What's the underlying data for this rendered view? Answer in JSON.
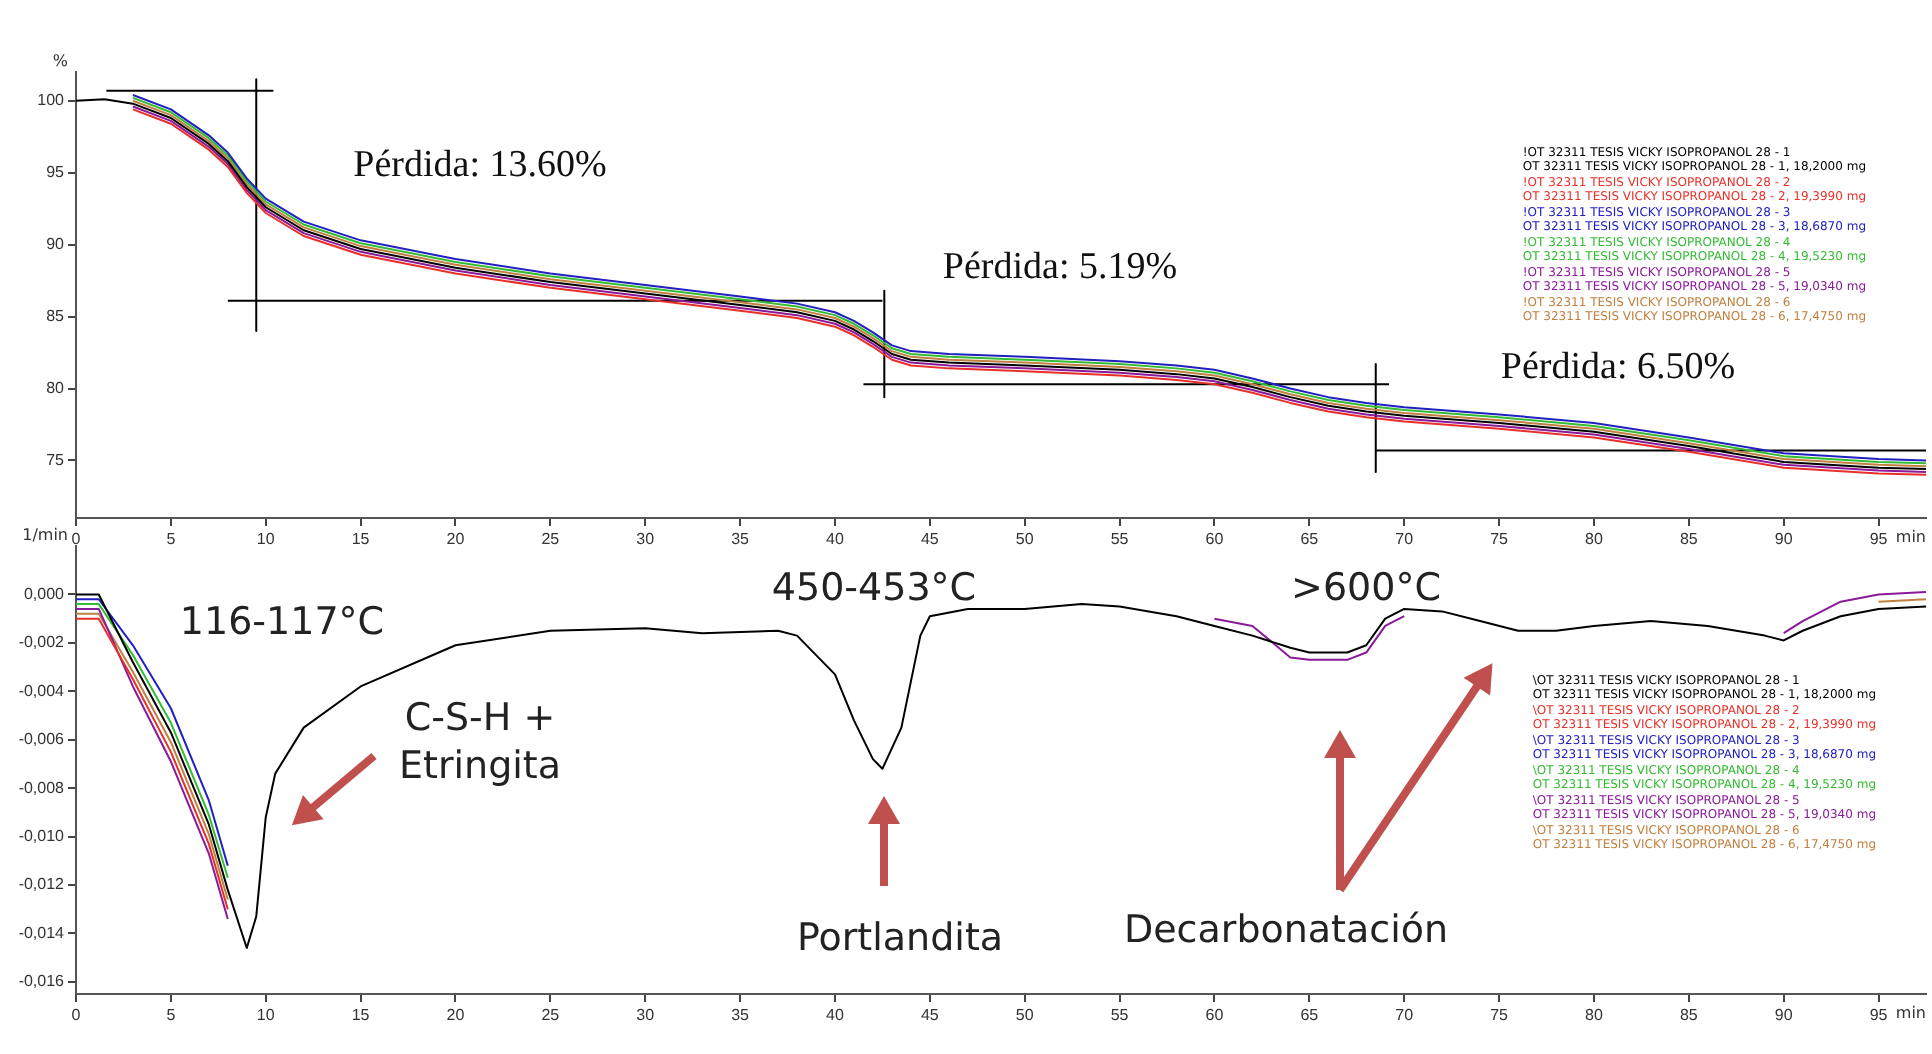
{
  "chart_data": [
    {
      "type": "line",
      "ylabel": "%",
      "xlabel": "min",
      "legend": "top right",
      "marker": "none",
      "xlim": [
        0,
        97.5
      ],
      "xticks": [
        0,
        5,
        10,
        15,
        20,
        25,
        30,
        35,
        40,
        45,
        50,
        55,
        60,
        65,
        70,
        75,
        80,
        85,
        90,
        95
      ],
      "ylim": [
        71,
        102
      ],
      "yticks": [
        75,
        80,
        85,
        90,
        95,
        100
      ],
      "x": [
        0,
        1.5,
        3,
        5,
        7,
        8,
        9,
        10,
        12,
        15,
        20,
        25,
        30,
        35,
        38,
        40,
        41,
        42,
        43,
        44,
        46,
        50,
        55,
        58,
        60,
        62,
        64,
        66,
        68,
        70,
        75,
        80,
        85,
        90,
        95,
        97.5
      ],
      "series": [
        {
          "name": "!OT 32311 TESIS VICKY ISOPROPANOL 28 - 1\nOT 32311 TESIS VICKY ISOPROPANOL 28 - 1, 18,2000 mg",
          "color": "#000000",
          "values": [
            100,
            100.1,
            99.8,
            98.8,
            97,
            95.8,
            94,
            92.6,
            91,
            89.7,
            88.4,
            87.4,
            86.6,
            85.8,
            85.3,
            84.7,
            84.1,
            83.3,
            82.4,
            82,
            81.8,
            81.6,
            81.3,
            81,
            80.7,
            80.1,
            79.4,
            78.8,
            78.4,
            78.1,
            77.6,
            77,
            76,
            74.9,
            74.5,
            74.4
          ]
        },
        {
          "name": "!OT 32311 TESIS VICKY ISOPROPANOL 28 - 2\nOT 32311 TESIS VICKY ISOPROPANOL 28 - 2, 19,3990 mg",
          "color": "#e8302a",
          "values": [
            null,
            null,
            99.4,
            98.4,
            96.6,
            95.4,
            93.6,
            92.2,
            90.6,
            89.3,
            88,
            87,
            86.2,
            85.4,
            84.9,
            84.3,
            83.7,
            82.9,
            82,
            81.6,
            81.4,
            81.2,
            80.9,
            80.6,
            80.3,
            79.7,
            79,
            78.4,
            78,
            77.7,
            77.2,
            76.6,
            75.6,
            74.5,
            74.1,
            74
          ]
        },
        {
          "name": "!OT 32311 TESIS VICKY ISOPROPANOL 28 - 3\nOT 32311 TESIS VICKY ISOPROPANOL 28 - 3, 18,6870 mg",
          "color": "#2020c0",
          "values": [
            null,
            null,
            100.4,
            99.4,
            97.6,
            96.4,
            94.6,
            93.2,
            91.6,
            90.3,
            89,
            88,
            87.2,
            86.4,
            85.9,
            85.3,
            84.7,
            83.9,
            83,
            82.6,
            82.4,
            82.2,
            81.9,
            81.6,
            81.3,
            80.7,
            80,
            79.4,
            79,
            78.7,
            78.2,
            77.6,
            76.6,
            75.5,
            75.1,
            75
          ]
        },
        {
          "name": "!OT 32311 TESIS VICKY ISOPROPANOL 28 - 4\nOT 32311 TESIS VICKY ISOPROPANOL 28 - 4, 19,5230 mg",
          "color": "#33bb33",
          "values": [
            null,
            null,
            100.2,
            99.2,
            97.4,
            96.2,
            94.4,
            93,
            91.4,
            90.1,
            88.8,
            87.8,
            87,
            86.2,
            85.7,
            85.1,
            84.5,
            83.7,
            82.8,
            82.4,
            82.2,
            82,
            81.7,
            81.4,
            81.1,
            80.5,
            79.8,
            79.2,
            78.8,
            78.5,
            78,
            77.4,
            76.4,
            75.3,
            74.9,
            74.8
          ]
        },
        {
          "name": "!OT 32311 TESIS VICKY ISOPROPANOL 28 - 5\nOT 32311 TESIS VICKY ISOPROPANOL 28 - 5, 19,0340 mg",
          "color": "#8a1a9a",
          "values": [
            null,
            null,
            99.6,
            98.6,
            96.8,
            95.6,
            93.8,
            92.4,
            90.8,
            89.5,
            88.2,
            87.2,
            86.4,
            85.6,
            85.1,
            84.5,
            83.9,
            83.1,
            82.2,
            81.8,
            81.6,
            81.4,
            81.1,
            80.8,
            80.5,
            79.9,
            79.2,
            78.6,
            78.2,
            77.9,
            77.4,
            76.8,
            75.8,
            74.7,
            74.3,
            74.2
          ]
        },
        {
          "name": "!OT 32311 TESIS VICKY ISOPROPANOL 28 - 6\nOT 32311 TESIS VICKY ISOPROPANOL 28 - 6, 17,4750 mg",
          "color": "#c08040",
          "values": [
            null,
            null,
            100,
            99,
            97.2,
            96,
            94.2,
            92.8,
            91.2,
            89.9,
            88.6,
            87.6,
            86.8,
            86,
            85.5,
            84.9,
            84.3,
            83.5,
            82.6,
            82.2,
            82,
            81.8,
            81.5,
            81.2,
            80.9,
            80.3,
            79.6,
            79,
            78.6,
            78.3,
            77.8,
            77.2,
            76.2,
            75.1,
            74.7,
            74.6
          ]
        },
        {
          "type": "line",
          "color": "#000000",
          "x": [
            1.6,
            10.4,
            null,
            9.5,
            9.5,
            null,
            8,
            42.5,
            null,
            42.6,
            42.6,
            null,
            41.5,
            69.2,
            null,
            68.5,
            68.5,
            null,
            68.5,
            97.5
          ],
          "values": [
            100.7,
            100.7,
            null,
            101.5,
            84,
            null,
            86.1,
            86.1,
            null,
            86.8,
            79.4,
            null,
            80.3,
            80.3,
            null,
            81.7,
            74.2,
            null,
            75.7,
            75.7
          ]
        }
      ],
      "annotations": [
        "Pérdida: 13.60%",
        "Pérdida: 5.19%",
        "Pérdida: 6.50%"
      ]
    },
    {
      "type": "line",
      "ylabel": "1/min",
      "xlabel": "min",
      "legend": "right",
      "marker": "none",
      "xlim": [
        0,
        97.5
      ],
      "xticks": [
        0,
        5,
        10,
        15,
        20,
        25,
        30,
        35,
        40,
        45,
        50,
        55,
        60,
        65,
        70,
        75,
        80,
        85,
        90,
        95
      ],
      "ylim": [
        -0.0165,
        0.002
      ],
      "yticks": [
        {
          "value": 0,
          "label": "0,000"
        },
        {
          "value": -0.002,
          "label": "-0,002"
        },
        {
          "value": -0.004,
          "label": "-0,004"
        },
        {
          "value": -0.006,
          "label": "-0,006"
        },
        {
          "value": -0.008,
          "label": "-0,008"
        },
        {
          "value": -0.01,
          "label": "-0,010"
        },
        {
          "value": -0.012,
          "label": "-0,012"
        },
        {
          "value": -0.014,
          "label": "-0,014"
        },
        {
          "value": -0.016,
          "label": "-0,016"
        }
      ],
      "x": [
        0,
        1.2,
        3,
        5,
        7,
        8,
        9,
        9.5,
        10,
        10.5,
        12,
        15,
        20,
        25,
        30,
        33,
        37,
        38,
        40,
        41,
        42,
        42.5,
        43.5,
        44.5,
        45,
        47,
        50,
        53,
        55,
        58,
        60,
        62,
        64,
        65,
        67,
        68,
        69,
        70,
        72,
        74,
        76,
        78,
        80,
        83,
        86,
        89,
        90,
        91,
        93,
        95,
        97.5
      ],
      "series": [
        {
          "name": "\\OT 32311 TESIS VICKY ISOPROPANOL 28 - 1\nOT 32311 TESIS VICKY ISOPROPANOL 28 - 1, 18,2000 mg",
          "color": "#000000",
          "values": [
            0,
            0,
            -0.0028,
            -0.0057,
            -0.0095,
            -0.0122,
            -0.0146,
            -0.0133,
            -0.0092,
            -0.0074,
            -0.0055,
            -0.0038,
            -0.0021,
            -0.0015,
            -0.0014,
            -0.0016,
            -0.0015,
            -0.0017,
            -0.0033,
            -0.0052,
            -0.0068,
            -0.0072,
            -0.0055,
            -0.0017,
            -0.0009,
            -0.0006,
            -0.0006,
            -0.0004,
            -0.0005,
            -0.0009,
            -0.0013,
            -0.0017,
            -0.0022,
            -0.0024,
            -0.0024,
            -0.0021,
            -0.001,
            -0.0006,
            -0.0007,
            -0.0011,
            -0.0015,
            -0.0015,
            -0.0013,
            -0.0011,
            -0.0013,
            -0.0017,
            -0.0019,
            -0.0015,
            -0.0009,
            -0.0006,
            -0.0005
          ]
        },
        {
          "name": "\\OT 32311 TESIS VICKY ISOPROPANOL 28 - 2\nOT 32311 TESIS VICKY ISOPROPANOL 28 - 2, 19,3990 mg",
          "color": "#e8302a",
          "values": [
            -0.001,
            -0.001,
            -0.0035,
            -0.0065,
            -0.0103,
            -0.013,
            null,
            null,
            null,
            null,
            null,
            null,
            null,
            null,
            null,
            null,
            null,
            null,
            null,
            null,
            null,
            null,
            null,
            null,
            null,
            null,
            null,
            null,
            null,
            null,
            null,
            null,
            null,
            null,
            null,
            null,
            null,
            null,
            null,
            null,
            null,
            null,
            null,
            null,
            null,
            null,
            null,
            null,
            null,
            null,
            null
          ]
        },
        {
          "name": "\\OT 32311 TESIS VICKY ISOPROPANOL 28 - 3\nOT 32311 TESIS VICKY ISOPROPANOL 28 - 3, 18,6870 mg",
          "color": "#2020c0",
          "values": [
            -0.0002,
            -0.0002,
            -0.0021,
            -0.0047,
            -0.0085,
            -0.0112,
            null,
            null,
            null,
            null,
            null,
            null,
            null,
            null,
            null,
            null,
            null,
            null,
            null,
            null,
            null,
            null,
            null,
            null,
            null,
            null,
            null,
            null,
            null,
            null,
            null,
            null,
            null,
            null,
            null,
            null,
            null,
            null,
            null,
            null,
            null,
            null,
            null,
            null,
            null,
            null,
            null,
            null,
            null,
            null,
            null
          ]
        },
        {
          "name": "\\OT 32311 TESIS VICKY ISOPROPANOL 28 - 4\nOT 32311 TESIS VICKY ISOPROPANOL 28 - 4, 19,5230 mg",
          "color": "#33bb33",
          "values": [
            -0.0004,
            -0.0004,
            -0.0025,
            -0.0053,
            -0.0091,
            -0.0117,
            null,
            null,
            null,
            null,
            null,
            null,
            null,
            null,
            null,
            null,
            null,
            null,
            null,
            null,
            null,
            null,
            null,
            null,
            null,
            null,
            null,
            null,
            null,
            null,
            null,
            null,
            null,
            null,
            null,
            null,
            null,
            null,
            null,
            null,
            null,
            null,
            null,
            null,
            null,
            null,
            null,
            null,
            null,
            null,
            null
          ]
        },
        {
          "name": "\\OT 32311 TESIS VICKY ISOPROPANOL 28 - 5\nOT 32311 TESIS VICKY ISOPROPANOL 28 - 5, 19,0340 mg",
          "color": "#8a1a9a",
          "values": [
            -0.0006,
            -0.0006,
            -0.0038,
            -0.0069,
            -0.0107,
            -0.0134,
            null,
            null,
            null,
            null,
            null,
            null,
            null,
            null,
            null,
            null,
            null,
            null,
            null,
            null,
            null,
            null,
            null,
            null,
            null,
            null,
            null,
            null,
            null,
            null,
            -0.001,
            -0.0013,
            -0.0026,
            -0.0027,
            -0.0027,
            -0.0024,
            -0.0013,
            -0.0009,
            null,
            null,
            null,
            null,
            null,
            null,
            null,
            null,
            -0.0016,
            -0.0011,
            -0.0003,
            0,
            0.0001
          ]
        },
        {
          "name": "\\OT 32311 TESIS VICKY ISOPROPANOL 28 - 6\nOT 32311 TESIS VICKY ISOPROPANOL 28 - 6, 17,4750 mg",
          "color": "#c08040",
          "values": [
            -0.0008,
            -0.0008,
            -0.0032,
            -0.0061,
            -0.0099,
            -0.0126,
            null,
            null,
            null,
            null,
            null,
            null,
            null,
            null,
            null,
            null,
            null,
            null,
            null,
            null,
            null,
            null,
            null,
            null,
            null,
            null,
            null,
            null,
            null,
            null,
            null,
            null,
            null,
            null,
            null,
            null,
            null,
            null,
            null,
            null,
            null,
            null,
            null,
            null,
            null,
            null,
            null,
            null,
            null,
            -0.0003,
            -0.0002
          ]
        }
      ],
      "annotations": [
        "116-117°C",
        "450-453°C",
        ">600°C",
        "C-S-H +\nEtringita",
        "Portlandita",
        "Decarbonatación"
      ]
    }
  ]
}
